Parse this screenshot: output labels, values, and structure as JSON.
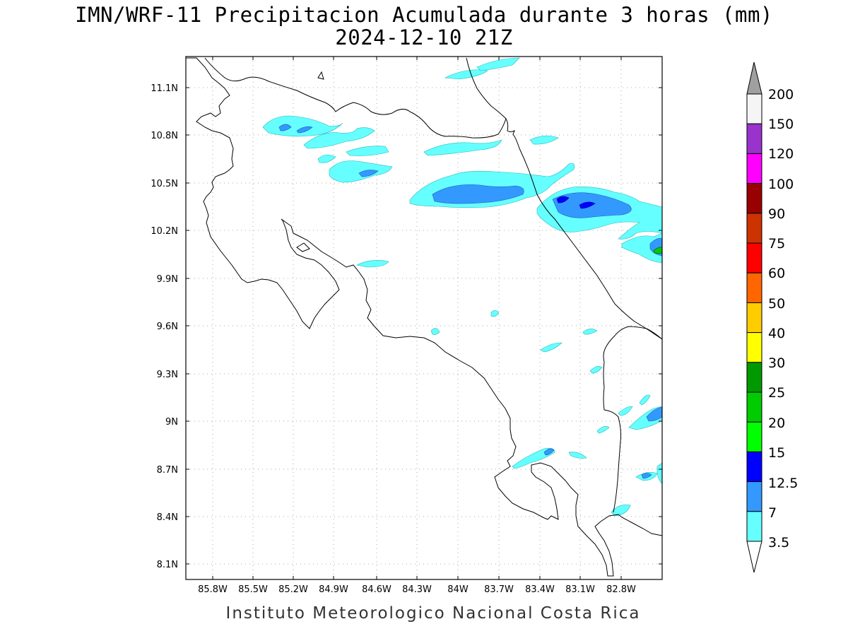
{
  "title_line1": "IMN/WRF-11 Precipitacion Acumulada durante 3 horas (mm)",
  "title_line2": "2024-12-10 21Z",
  "footer": "Instituto Meteorologico Nacional Costa Rica",
  "map": {
    "lon_range": [
      -86.0,
      -82.5
    ],
    "lat_range": [
      7.9,
      11.3
    ],
    "lon_ticks": [
      "85.8W",
      "85.5W",
      "85.2W",
      "84.9W",
      "84.6W",
      "84.3W",
      "84W",
      "83.7W",
      "83.4W",
      "83.1W",
      "82.8W"
    ],
    "lat_ticks": [
      "11.1N",
      "10.8N",
      "10.5N",
      "10.2N",
      "9.9N",
      "9.6N",
      "9.3N",
      "9N",
      "8.7N",
      "8.4N",
      "8.1N"
    ],
    "grid": "dotted"
  },
  "colorbar": {
    "labels": [
      "200",
      "150",
      "120",
      "100",
      "90",
      "75",
      "60",
      "50",
      "40",
      "30",
      "25",
      "20",
      "15",
      "12.5",
      "7",
      "3.5"
    ],
    "colors": {
      "above_200": "#a0a0a0",
      "150-200": "#f5f5f5",
      "120-150": "#9933cc",
      "100-120": "#ff00ff",
      "90-100": "#990000",
      "75-90": "#cc3300",
      "60-75": "#ff0000",
      "50-60": "#ff6600",
      "40-50": "#ffcc00",
      "30-40": "#ffff00",
      "25-30": "#009900",
      "20-25": "#00cc00",
      "15-20": "#00ff00",
      "12.5-15": "#0000ff",
      "7-12.5": "#3399ff",
      "3.5-7": "#66ffff",
      "below_3.5": "#ffffff"
    }
  }
}
